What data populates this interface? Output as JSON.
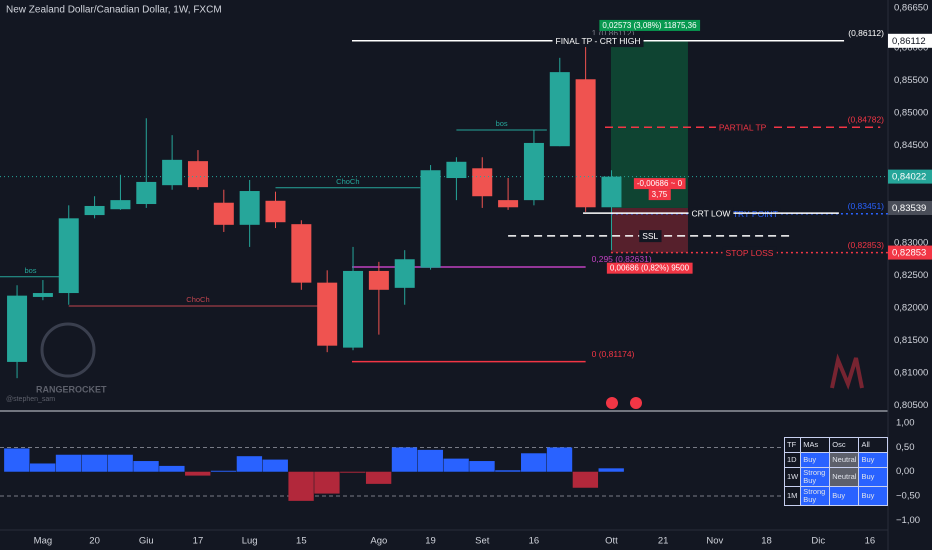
{
  "chart_data": [
    {
      "type": "candlestick",
      "title": "New Zealand Dollar/Canadian Dollar, 1W, FXCM",
      "x": [
        0,
        1,
        2,
        3,
        4,
        5,
        6,
        7,
        8,
        9,
        10,
        11,
        12,
        13,
        14,
        15,
        16,
        17,
        18,
        19,
        20,
        21,
        22,
        23
      ],
      "open": [
        0.8117,
        0.8217,
        0.8223,
        0.8343,
        0.8352,
        0.836,
        0.8389,
        0.8426,
        0.8362,
        0.8328,
        0.8365,
        0.8329,
        0.8239,
        0.8139,
        0.8257,
        0.8231,
        0.8262,
        0.84,
        0.8415,
        0.8366,
        0.8366,
        0.8449,
        0.8552,
        0.8355
      ],
      "high": [
        0.8235,
        0.8243,
        0.8358,
        0.8372,
        0.8405,
        0.8492,
        0.8466,
        0.8443,
        0.8382,
        0.8397,
        0.8379,
        0.8335,
        0.8258,
        0.8294,
        0.8271,
        0.8289,
        0.842,
        0.8432,
        0.8432,
        0.84,
        0.8474,
        0.8585,
        0.86112,
        0.8412
      ],
      "low": [
        0.8092,
        0.8212,
        0.8205,
        0.8338,
        0.8351,
        0.8354,
        0.8382,
        0.8382,
        0.8317,
        0.8294,
        0.8323,
        0.8228,
        0.8132,
        0.8135,
        0.8159,
        0.8205,
        0.8259,
        0.8366,
        0.8354,
        0.8351,
        0.8358,
        0.8449,
        0.8348,
        0.8289
      ],
      "close": [
        0.8219,
        0.8223,
        0.8338,
        0.8357,
        0.8366,
        0.8394,
        0.8428,
        0.8386,
        0.8328,
        0.838,
        0.8332,
        0.8239,
        0.8142,
        0.8257,
        0.8228,
        0.8275,
        0.8412,
        0.8425,
        0.8372,
        0.8355,
        0.8454,
        0.8563,
        0.8355,
        0.84022
      ],
      "up_color": "#26a69a",
      "down_color": "#ef5350",
      "xlim": [
        -0.66,
        33.7
      ],
      "xticks": [
        {
          "value": 1,
          "label": "Mag"
        },
        {
          "value": 3,
          "label": "20"
        },
        {
          "value": 5,
          "label": "Giu"
        },
        {
          "value": 7,
          "label": "17"
        },
        {
          "value": 9,
          "label": "Lug"
        },
        {
          "value": 11,
          "label": "15"
        },
        {
          "value": 14,
          "label": "Ago"
        },
        {
          "value": 16,
          "label": "19"
        },
        {
          "value": 18,
          "label": "Set"
        },
        {
          "value": 20,
          "label": "16"
        },
        {
          "value": 23,
          "label": "Ott"
        },
        {
          "value": 25,
          "label": "21"
        },
        {
          "value": 27,
          "label": "Nov"
        },
        {
          "value": 29,
          "label": "18"
        },
        {
          "value": 31,
          "label": "Dic"
        },
        {
          "value": 33,
          "label": "16"
        }
      ],
      "ylim": [
        0.8043,
        0.8674
      ],
      "yticks": [
        {
          "value": 0.8665,
          "label": "0,86650"
        },
        {
          "value": 0.86,
          "label": "0,86000"
        },
        {
          "value": 0.855,
          "label": "0,85500"
        },
        {
          "value": 0.85,
          "label": "0,85000"
        },
        {
          "value": 0.845,
          "label": "0,84500"
        },
        {
          "value": 0.83,
          "label": "0,83000"
        },
        {
          "value": 0.825,
          "label": "0,82500"
        },
        {
          "value": 0.82,
          "label": "0,82000"
        },
        {
          "value": 0.815,
          "label": "0,81500"
        },
        {
          "value": 0.81,
          "label": "0,81000"
        },
        {
          "value": 0.805,
          "label": "0,80500"
        }
      ],
      "grid": false,
      "badges": [
        {
          "label": "0,86112",
          "value": 0.86112,
          "color": "#ffffff",
          "text_color": "#131722",
          "line": false
        },
        {
          "label": "0,84022",
          "value": 0.84022,
          "color": "#26a69a",
          "text_color": "#ffffff",
          "line": true
        },
        {
          "label": "0,83539",
          "value": 0.83539,
          "color": "#4a4e59",
          "text_color": "#ffffff",
          "line": false
        },
        {
          "label": "0,82853",
          "value": 0.82853,
          "color": "#f23645",
          "text_color": "#ffffff",
          "line": false
        }
      ],
      "levels": [
        {
          "label": "FINAL TP - CRT HIGH",
          "value": 0.86112,
          "value_label": "(0,86112)",
          "color": "#ffffff",
          "style": "solid",
          "from": 12.96,
          "to": 32
        },
        {
          "label": "PARTIAL TP",
          "value": 0.84782,
          "value_label": "(0,84782)",
          "color": "#f23645",
          "style": "dashed",
          "from": 22.75,
          "to": 33.4
        },
        {
          "label": "ENTRY POINT",
          "value": 0.83451,
          "value_label": "(0,83451)",
          "color": "#2962ff",
          "style": "dotted",
          "from": 22.98,
          "to": 33.7
        },
        {
          "label": "CRT LOW",
          "value": 0.8346,
          "color": "#ffffff",
          "style": "solid",
          "from": 21.9,
          "to": 31.8
        },
        {
          "label": "SSL",
          "value": 0.8311,
          "color": "#ffffff",
          "style": "dashed",
          "from": 19,
          "to": 30
        },
        {
          "label": "STOP LOSS",
          "value": 0.82853,
          "value_label": "(0,82853)",
          "color": "#f23645",
          "style": "dotted",
          "from": 22.98,
          "to": 33.7
        }
      ],
      "structure": [
        {
          "label": "bos",
          "value": 0.8474,
          "from": 17,
          "to": 20.5,
          "color": "#26a69a"
        },
        {
          "label": "bos",
          "value": 0.8248,
          "from": -0.66,
          "to": 1.7,
          "color": "#26a69a"
        },
        {
          "label": "ChoCh",
          "value": 0.8385,
          "from": 10,
          "to": 15.6,
          "color": "#26a69a"
        },
        {
          "label": "ChoCh",
          "value": 0.8203,
          "from": 2,
          "to": 12,
          "color": "#c0454f"
        }
      ],
      "fib": [
        {
          "label": "1 (0,86112)",
          "value": 0.86112,
          "color": "#787b86",
          "from": 12.96,
          "to": 22
        },
        {
          "label": "0,295 (0,82631)",
          "value": 0.82631,
          "color": "#c040c0",
          "from": 12.96,
          "to": 22
        },
        {
          "label": "0 (0,81174)",
          "value": 0.81174,
          "color": "#f23645",
          "from": 12.96,
          "to": 22
        }
      ],
      "position": {
        "target": 0.86112,
        "entry": 0.83539,
        "stop": 0.82853,
        "from": 22.98,
        "to": 25.96,
        "target_label": "0,02573 (3,08%) 11875,36",
        "stop_label": "0,00686 (0,82%) 9500",
        "ratio_label": [
          "-0,00686 ~ 0",
          "3,75"
        ]
      },
      "watermark": {
        "brand": "RANGEROCKET",
        "handle": "@stephen_sam"
      }
    },
    {
      "type": "bar",
      "x": [
        0,
        1,
        2,
        3,
        4,
        5,
        6,
        7,
        8,
        9,
        10,
        11,
        12,
        13,
        14,
        15,
        16,
        17,
        18,
        19,
        20,
        21,
        22,
        23
      ],
      "values": [
        0.48,
        0.17,
        0.35,
        0.35,
        0.35,
        0.22,
        0.12,
        -0.08,
        0.02,
        0.32,
        0.25,
        -0.6,
        -0.45,
        -0.02,
        -0.25,
        0.5,
        0.45,
        0.27,
        0.22,
        0.03,
        0.38,
        0.5,
        -0.33,
        0.07
      ],
      "pos_color": "#2962ff",
      "neg_color": "#b2283b",
      "xlim": [
        -0.66,
        33.7
      ],
      "ylim": [
        -1.2,
        1.23
      ],
      "yticks": [
        {
          "value": 1,
          "label": "1,00"
        },
        {
          "value": 0.5,
          "label": "0,50"
        },
        {
          "value": 0,
          "label": "0,00"
        },
        {
          "value": -0.5,
          "label": "−0,50"
        },
        {
          "value": -1,
          "label": "−1,00"
        }
      ],
      "dashed_levels": [
        0.5,
        -0.5
      ]
    }
  ],
  "signal_table": {
    "header": [
      "TF",
      "MAs",
      "Osc",
      "All"
    ],
    "rows": [
      [
        "1D",
        "Buy",
        "Neutral",
        "Buy"
      ],
      [
        "1W",
        "Strong Buy",
        "Neutral",
        "Buy"
      ],
      [
        "1M",
        "Strong Buy",
        "Buy",
        "Buy"
      ]
    ]
  }
}
